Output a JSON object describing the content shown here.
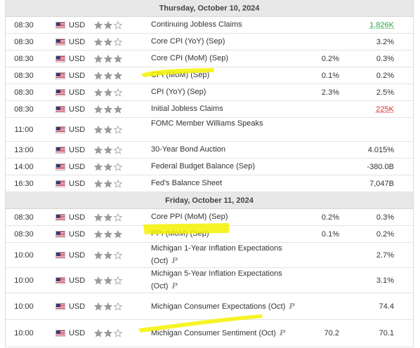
{
  "colors": {
    "highlight": "#f5f200",
    "green": "#2aa844",
    "red": "#d32f2f",
    "star_filled": "#9a9a9a",
    "star_empty": "#ffffff"
  },
  "days": [
    {
      "label": "Thursday, October 10, 2024",
      "events": [
        {
          "time": "08:30",
          "currency": "USD",
          "importance": 2,
          "event": "Continuing Jobless Claims",
          "forecast": "",
          "actual": "1,826K",
          "actual_style": "green"
        },
        {
          "time": "08:30",
          "currency": "USD",
          "importance": 2,
          "event": "Core CPI (YoY) (Sep)",
          "forecast": "",
          "actual": "3.2%",
          "actual_style": ""
        },
        {
          "time": "08:30",
          "currency": "USD",
          "importance": 3,
          "event": "Core CPI (MoM) (Sep)",
          "forecast": "0.2%",
          "actual": "0.3%",
          "actual_style": ""
        },
        {
          "time": "08:30",
          "currency": "USD",
          "importance": 3,
          "event": "CPI (MoM) (Sep)",
          "forecast": "0.1%",
          "actual": "0.2%",
          "actual_style": ""
        },
        {
          "time": "08:30",
          "currency": "USD",
          "importance": 2,
          "event": "CPI (YoY) (Sep)",
          "forecast": "2.3%",
          "actual": "2.5%",
          "actual_style": ""
        },
        {
          "time": "08:30",
          "currency": "USD",
          "importance": 3,
          "event": "Initial Jobless Claims",
          "forecast": "",
          "actual": "225K",
          "actual_style": "red"
        },
        {
          "time": "11:00",
          "currency": "USD",
          "importance": 2,
          "event": "FOMC Member Williams Speaks",
          "forecast": "",
          "actual": "",
          "actual_style": ""
        },
        {
          "time": "13:00",
          "currency": "USD",
          "importance": 2,
          "event": "30-Year Bond Auction",
          "forecast": "",
          "actual": "4.015%",
          "actual_style": ""
        },
        {
          "time": "14:00",
          "currency": "USD",
          "importance": 2,
          "event": "Federal Budget Balance (Sep)",
          "forecast": "",
          "actual": "-380.0B",
          "actual_style": ""
        },
        {
          "time": "16:30",
          "currency": "USD",
          "importance": 2,
          "event": "Fed's Balance Sheet",
          "forecast": "",
          "actual": "7,047B",
          "actual_style": ""
        }
      ]
    },
    {
      "label": "Friday, October 11, 2024",
      "events": [
        {
          "time": "08:30",
          "currency": "USD",
          "importance": 2,
          "event": "Core PPI (MoM) (Sep)",
          "forecast": "0.2%",
          "actual": "0.3%",
          "actual_style": ""
        },
        {
          "time": "08:30",
          "currency": "USD",
          "importance": 3,
          "event": "PPI (MoM) (Sep)",
          "forecast": "0.1%",
          "actual": "0.2%",
          "actual_style": ""
        },
        {
          "time": "10:00",
          "currency": "USD",
          "importance": 2,
          "event": "Michigan 1-Year Inflation Expectations (Oct)",
          "preliminary": "P",
          "forecast": "",
          "actual": "2.7%",
          "actual_style": ""
        },
        {
          "time": "10:00",
          "currency": "USD",
          "importance": 2,
          "event": "Michigan 5-Year Inflation Expectations (Oct)",
          "preliminary": "P",
          "forecast": "",
          "actual": "3.1%",
          "actual_style": ""
        },
        {
          "time": "10:00",
          "currency": "USD",
          "importance": 2,
          "event": "Michigan Consumer Expectations (Oct)",
          "preliminary": "P",
          "forecast": "",
          "actual": "74.4",
          "actual_style": ""
        },
        {
          "time": "10:00",
          "currency": "USD",
          "importance": 2,
          "event": "Michigan Consumer Sentiment (Oct)",
          "preliminary": "P",
          "forecast": "70.2",
          "actual": "70.1",
          "actual_style": ""
        }
      ]
    }
  ]
}
